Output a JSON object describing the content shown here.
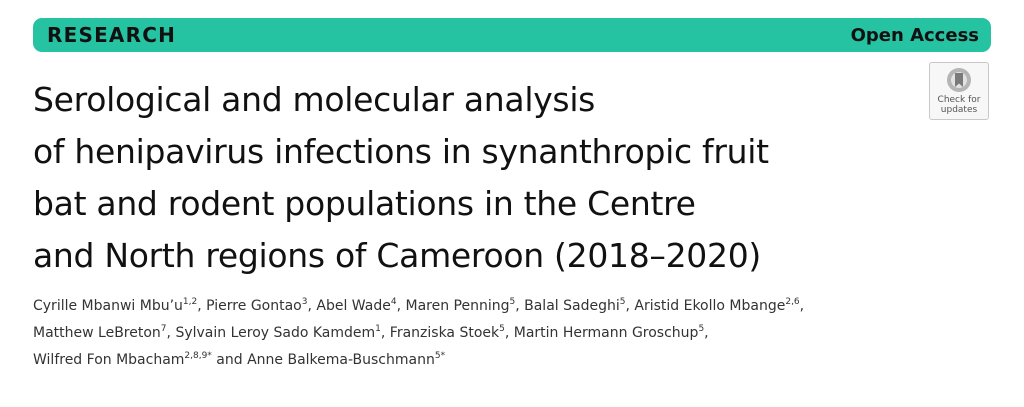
{
  "banner": {
    "section": "RESEARCH",
    "access": "Open Access"
  },
  "check_updates": {
    "line1": "Check for",
    "line2": "updates",
    "icon": "bookmark-check-icon"
  },
  "title_lines": [
    "Serological and molecular analysis",
    "of henipavirus infections in synanthropic fruit",
    "bat and rodent populations in the Centre",
    "and North regions of Cameroon (2018–2020)"
  ],
  "author_lines": [
    [
      {
        "name": "Cyrille Mbanwi Mbu’u",
        "aff": "1,2",
        "sep": ", "
      },
      {
        "name": "Pierre Gontao",
        "aff": "3",
        "sep": ", "
      },
      {
        "name": "Abel Wade",
        "aff": "4",
        "sep": ", "
      },
      {
        "name": "Maren Penning",
        "aff": "5",
        "sep": ", "
      },
      {
        "name": "Balal Sadeghi",
        "aff": "5",
        "sep": ", "
      },
      {
        "name": "Aristid Ekollo Mbange",
        "aff": "2,6",
        "sep": ","
      }
    ],
    [
      {
        "name": "Matthew LeBreton",
        "aff": "7",
        "sep": ", "
      },
      {
        "name": "Sylvain Leroy Sado Kamdem",
        "aff": "1",
        "sep": ", "
      },
      {
        "name": "Franziska Stoek",
        "aff": "5",
        "sep": ", "
      },
      {
        "name": "Martin Hermann Groschup",
        "aff": "5",
        "sep": ","
      }
    ],
    [
      {
        "name": "Wilfred Fon Mbacham",
        "aff": "2,8,9*",
        "sep": " and "
      },
      {
        "name": "Anne Balkema-Buschmann",
        "aff": "5*",
        "sep": ""
      }
    ]
  ]
}
